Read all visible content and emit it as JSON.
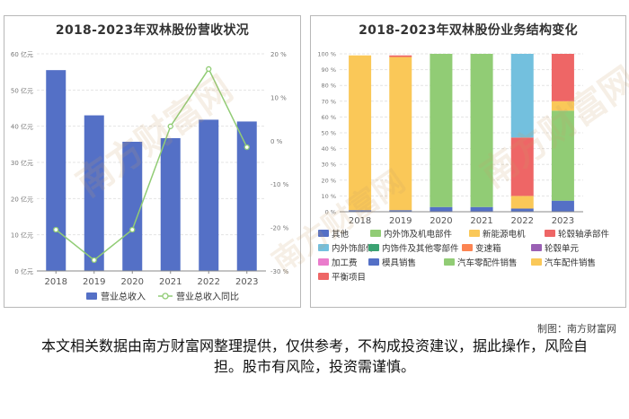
{
  "chart_data": [
    {
      "type": "bar",
      "title": "2018-2023年双林股份营收状况",
      "categories": [
        "2018",
        "2019",
        "2020",
        "2021",
        "2022",
        "2023"
      ],
      "ylim": [
        0,
        60
      ],
      "y2lim": [
        -30,
        20
      ],
      "y_ticks": [
        "0 亿元",
        "10 亿元",
        "20 亿元",
        "30 亿元",
        "40 亿元",
        "50 亿元",
        "60 亿元"
      ],
      "y2_ticks": [
        "-30 %",
        "-20 %",
        "-10 %",
        "0 %",
        "10 %",
        "20 %"
      ],
      "series": [
        {
          "name": "营业总收入",
          "type": "bar",
          "axis": "left",
          "color": "#5470c6",
          "values": [
            55.5,
            43.0,
            35.7,
            36.7,
            41.8,
            41.3
          ]
        },
        {
          "name": "营业总收入同比",
          "type": "line",
          "axis": "right",
          "color": "#91cc75",
          "values": [
            -20.5,
            -27.5,
            -20.5,
            3.3,
            16.5,
            -1.5
          ]
        }
      ],
      "legend_position": "bottom",
      "grid": true
    },
    {
      "type": "bar",
      "stacked": true,
      "title": "2018-2023年双林股份业务结构变化",
      "categories": [
        "2018",
        "2019",
        "2020",
        "2021",
        "2022",
        "2023"
      ],
      "ylim": [
        0,
        100
      ],
      "y_ticks": [
        "0 %",
        "10 %",
        "20 %",
        "30 %",
        "40 %",
        "50 %",
        "60 %",
        "70 %",
        "80 %",
        "90 %",
        "100 %"
      ],
      "series": [
        {
          "name": "其他",
          "color": "#5470c6",
          "values": [
            1,
            1,
            3,
            3,
            2,
            7
          ]
        },
        {
          "name": "内外饰及机电部件",
          "color": "#91cc75",
          "values": [
            0,
            0,
            0,
            0,
            0,
            0
          ]
        },
        {
          "name": "新能源电机",
          "color": "#fac858",
          "values": [
            0,
            0,
            0,
            0,
            0,
            0
          ]
        },
        {
          "name": "轮毂轴承部件",
          "color": "#ee6666",
          "values": [
            0,
            0,
            0,
            0,
            0,
            0
          ]
        },
        {
          "name": "内外饰部件",
          "color": "#73c0de",
          "values": [
            0,
            0,
            0,
            0,
            0,
            0
          ]
        },
        {
          "name": "内饰件及其他零部件",
          "color": "#3ba272",
          "values": [
            0,
            0,
            0,
            0,
            0,
            0
          ]
        },
        {
          "name": "变速箱",
          "color": "#fc8452",
          "values": [
            0,
            0,
            0,
            0,
            0,
            0
          ]
        },
        {
          "name": "轮毂单元",
          "color": "#9a60b4",
          "values": [
            0,
            0,
            0,
            0,
            0,
            0
          ]
        },
        {
          "name": "加工费",
          "color": "#ea7ccc",
          "values": [
            0,
            0,
            0,
            0,
            0,
            0
          ]
        },
        {
          "name": "模具销售",
          "color": "#5470c6",
          "values": [
            0,
            0,
            0,
            0,
            0,
            0
          ]
        },
        {
          "name": "汽车零配件销售",
          "color": "#91cc75",
          "values": [
            0,
            0,
            97,
            97,
            0,
            57
          ]
        },
        {
          "name": "汽车配件销售",
          "color": "#fac858",
          "values": [
            98,
            97,
            0,
            0,
            8,
            6
          ]
        },
        {
          "name": "平衡项目",
          "color": "#ee6666",
          "values": [
            0,
            1,
            0,
            0,
            37,
            30
          ]
        },
        {
          "name": "_extra_lightblue",
          "color": "#73c0de",
          "values": [
            0,
            0,
            0,
            0,
            53,
            0
          ]
        }
      ],
      "legend_position": "bottom",
      "grid": true
    }
  ],
  "credit": "制图：南方财富网",
  "disclaimer": "本文相关数据由南方财富网整理提供，仅供参考，不构成投资建议，据此操作，风险自担。股市有风险，投资需谨慎。",
  "watermark": "南方财富网"
}
